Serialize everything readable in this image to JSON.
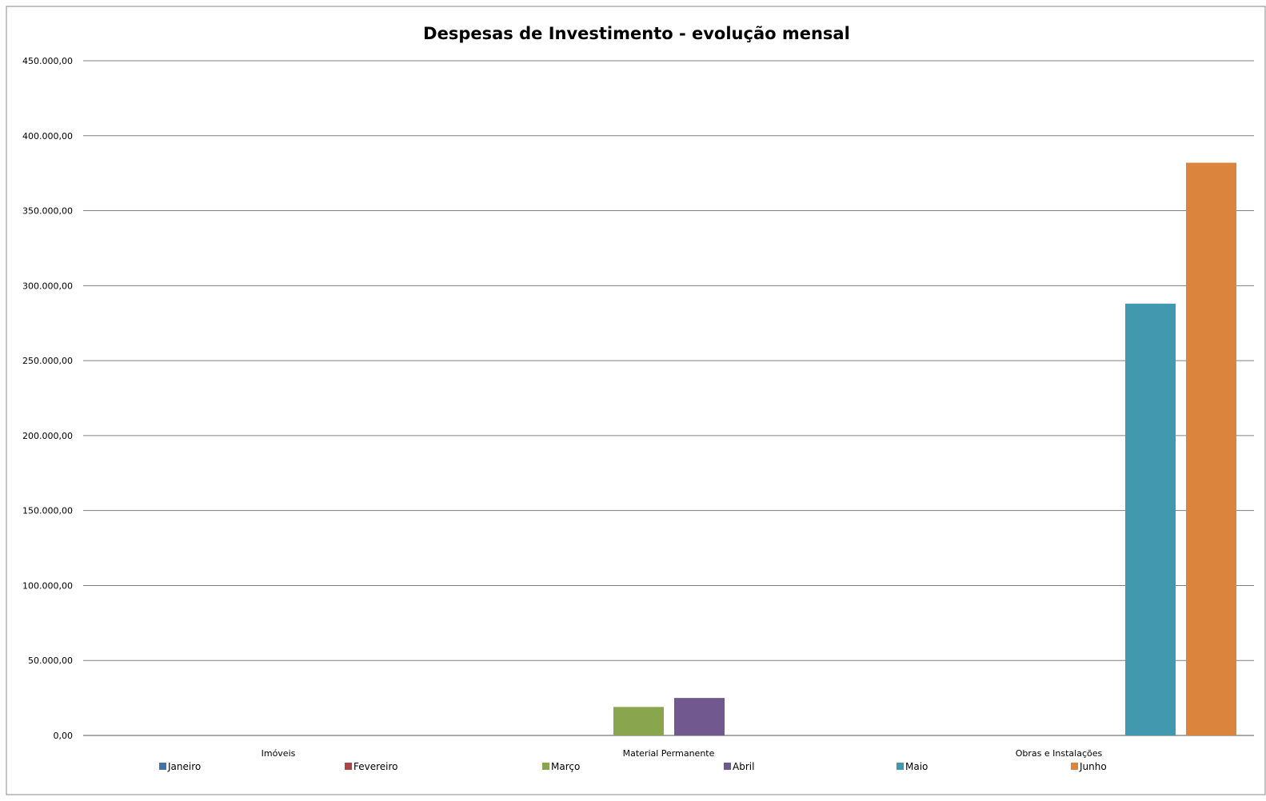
{
  "chart_data": {
    "type": "bar",
    "title": "Despesas de Investimento - evolução mensal",
    "xlabel": "",
    "ylabel": "",
    "categories": [
      "Imóveis",
      "Material Permanente",
      "Obras e Instalações"
    ],
    "series": [
      {
        "name": "Janeiro",
        "color": "#4572a7",
        "values": [
          0,
          0,
          0
        ]
      },
      {
        "name": "Fevereiro",
        "color": "#aa4643",
        "values": [
          0,
          0,
          0
        ]
      },
      {
        "name": "Março",
        "color": "#89a54e",
        "values": [
          0,
          19000,
          0
        ]
      },
      {
        "name": "Abril",
        "color": "#71588f",
        "values": [
          0,
          25000,
          0
        ]
      },
      {
        "name": "Maio",
        "color": "#4198af",
        "values": [
          0,
          0,
          288000
        ]
      },
      {
        "name": "Junho",
        "color": "#db843d",
        "values": [
          0,
          0,
          382000
        ]
      }
    ],
    "ylim": [
      0,
      450000
    ],
    "yticks": [
      {
        "value": 0,
        "label": "0,00"
      },
      {
        "value": 50000,
        "label": "50.000,00"
      },
      {
        "value": 100000,
        "label": "100.000,00"
      },
      {
        "value": 150000,
        "label": "150.000,00"
      },
      {
        "value": 200000,
        "label": "200.000,00"
      },
      {
        "value": 250000,
        "label": "250.000,00"
      },
      {
        "value": 300000,
        "label": "300.000,00"
      },
      {
        "value": 350000,
        "label": "350.000,00"
      },
      {
        "value": 400000,
        "label": "400.000,00"
      },
      {
        "value": 450000,
        "label": "450.000,00"
      }
    ],
    "grid": true,
    "legend": "bottom"
  }
}
